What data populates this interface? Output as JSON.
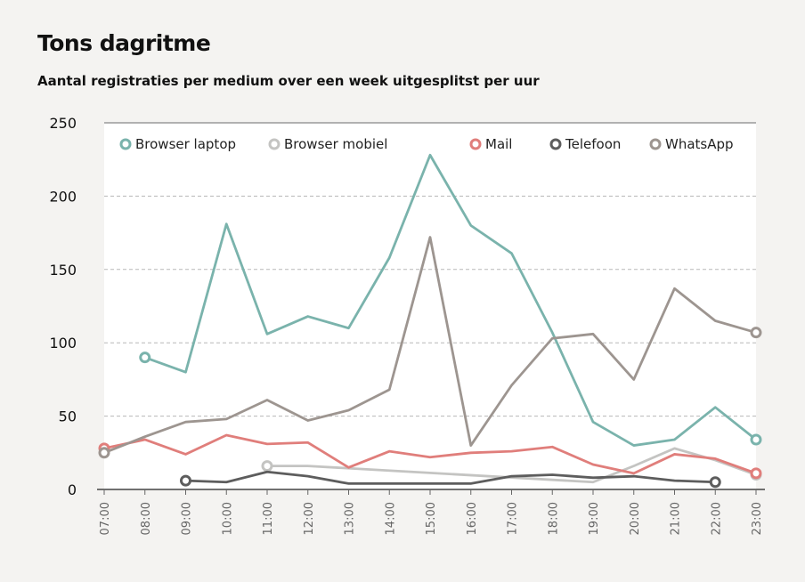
{
  "title": "Tons dagritme",
  "subtitle": "Aantal registraties per medium over een week uitgesplitst per uur",
  "chart_data": {
    "type": "line",
    "x": [
      "07:00",
      "08:00",
      "09:00",
      "10:00",
      "11:00",
      "12:00",
      "13:00",
      "14:00",
      "15:00",
      "16:00",
      "17:00",
      "18:00",
      "19:00",
      "20:00",
      "21:00",
      "22:00",
      "23:00"
    ],
    "ylim": [
      0,
      250
    ],
    "yticks": [
      0,
      50,
      100,
      150,
      200,
      250
    ],
    "grid": true,
    "legend_position": "top",
    "series": [
      {
        "name": "Browser laptop",
        "color": "#7ab3ac",
        "values": [
          null,
          90,
          80,
          181,
          106,
          118,
          110,
          158,
          228,
          180,
          161,
          107,
          46,
          30,
          34,
          56,
          34
        ]
      },
      {
        "name": "Browser mobiel",
        "color": "#c4c4c2",
        "values": [
          null,
          null,
          null,
          null,
          16,
          16,
          null,
          null,
          null,
          null,
          null,
          null,
          5,
          16,
          28,
          20,
          10
        ]
      },
      {
        "name": "Mail",
        "color": "#e07e7b",
        "values": [
          28,
          34,
          24,
          37,
          31,
          32,
          15,
          26,
          22,
          25,
          26,
          29,
          17,
          11,
          24,
          21,
          11
        ]
      },
      {
        "name": "Telefoon",
        "color": "#5d5d5d",
        "values": [
          null,
          null,
          6,
          5,
          12,
          9,
          4,
          4,
          4,
          4,
          9,
          10,
          8,
          9,
          6,
          5,
          null
        ]
      },
      {
        "name": "WhatsApp",
        "color": "#9d9590",
        "values": [
          25,
          36,
          46,
          48,
          61,
          47,
          54,
          68,
          172,
          30,
          71,
          103,
          106,
          75,
          137,
          115,
          107
        ]
      }
    ]
  }
}
